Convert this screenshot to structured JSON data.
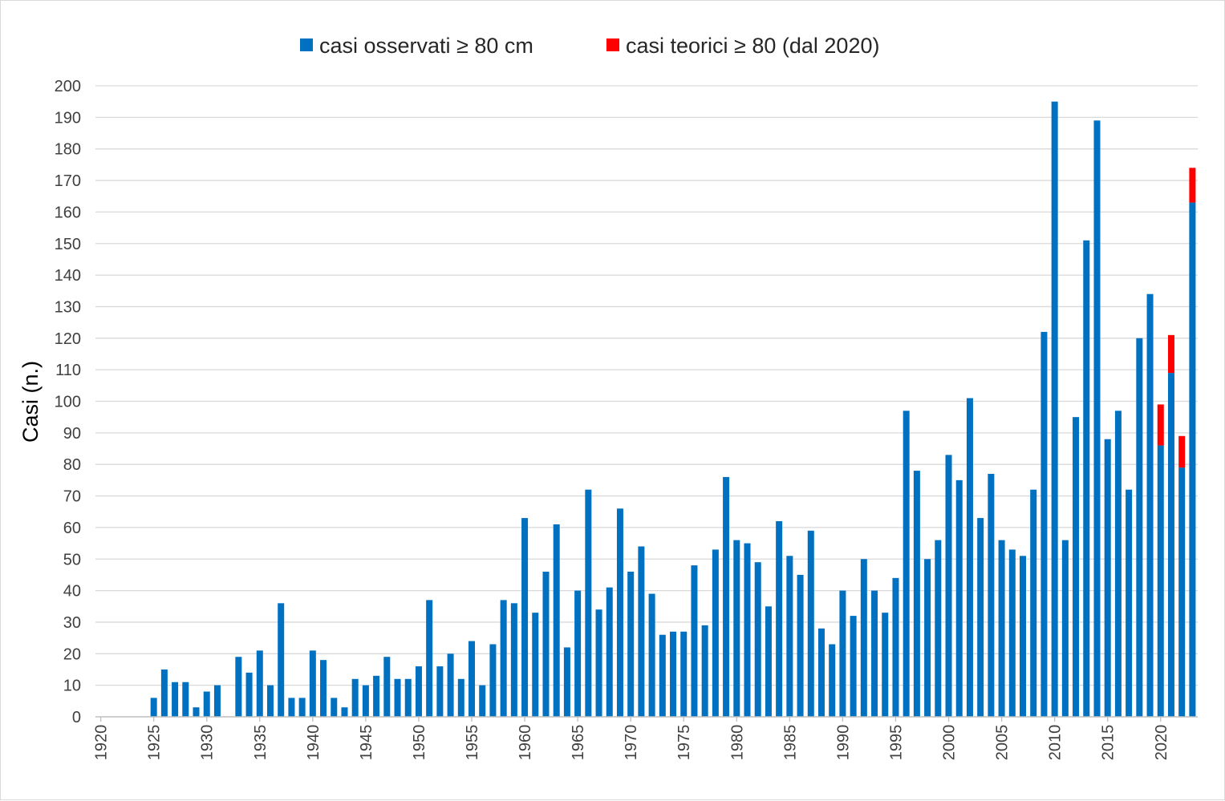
{
  "chart_data": {
    "type": "bar",
    "stacked": true,
    "xlabel": "",
    "ylabel": "Casi (n.)",
    "ylim": [
      0,
      200
    ],
    "yticks": [
      0,
      10,
      20,
      30,
      40,
      50,
      60,
      70,
      80,
      90,
      100,
      110,
      120,
      130,
      140,
      150,
      160,
      170,
      180,
      190,
      200
    ],
    "x_tick_labels": [
      "1920",
      "1925",
      "1930",
      "1935",
      "1940",
      "1945",
      "1950",
      "1955",
      "1960",
      "1965",
      "1970",
      "1975",
      "1980",
      "1985",
      "1990",
      "1995",
      "2000",
      "2005",
      "2010",
      "2015",
      "2020"
    ],
    "grid": true,
    "legend_position": "top",
    "categories": [
      1920,
      1921,
      1922,
      1923,
      1924,
      1925,
      1926,
      1927,
      1928,
      1929,
      1930,
      1931,
      1932,
      1933,
      1934,
      1935,
      1936,
      1937,
      1938,
      1939,
      1940,
      1941,
      1942,
      1943,
      1944,
      1945,
      1946,
      1947,
      1948,
      1949,
      1950,
      1951,
      1952,
      1953,
      1954,
      1955,
      1956,
      1957,
      1958,
      1959,
      1960,
      1961,
      1962,
      1963,
      1964,
      1965,
      1966,
      1967,
      1968,
      1969,
      1970,
      1971,
      1972,
      1973,
      1974,
      1975,
      1976,
      1977,
      1978,
      1979,
      1980,
      1981,
      1982,
      1983,
      1984,
      1985,
      1986,
      1987,
      1988,
      1989,
      1990,
      1991,
      1992,
      1993,
      1994,
      1995,
      1996,
      1997,
      1998,
      1999,
      2000,
      2001,
      2002,
      2003,
      2004,
      2005,
      2006,
      2007,
      2008,
      2009,
      2010,
      2011,
      2012,
      2013,
      2014,
      2015,
      2016,
      2017,
      2018,
      2019,
      2020,
      2021,
      2022,
      2023
    ],
    "series": [
      {
        "name": "casi osservati ≥ 80 cm",
        "color": "#0070C0",
        "values": [
          0,
          0,
          0,
          0,
          0,
          6,
          15,
          11,
          11,
          3,
          8,
          10,
          0,
          19,
          14,
          21,
          10,
          36,
          6,
          6,
          21,
          18,
          6,
          3,
          12,
          10,
          13,
          19,
          12,
          12,
          16,
          37,
          16,
          20,
          12,
          24,
          10,
          23,
          37,
          36,
          63,
          33,
          46,
          61,
          22,
          40,
          72,
          34,
          41,
          66,
          46,
          54,
          39,
          26,
          27,
          27,
          48,
          29,
          53,
          76,
          56,
          55,
          49,
          35,
          62,
          51,
          45,
          59,
          28,
          23,
          40,
          32,
          50,
          40,
          33,
          44,
          97,
          78,
          50,
          56,
          83,
          75,
          101,
          63,
          77,
          56,
          53,
          51,
          72,
          122,
          195,
          56,
          95,
          151,
          189,
          88,
          97,
          72,
          120,
          134,
          86,
          109,
          79,
          163
        ]
      },
      {
        "name": "casi teorici ≥ 80 (dal 2020)",
        "color": "#FF0000",
        "values": [
          0,
          0,
          0,
          0,
          0,
          0,
          0,
          0,
          0,
          0,
          0,
          0,
          0,
          0,
          0,
          0,
          0,
          0,
          0,
          0,
          0,
          0,
          0,
          0,
          0,
          0,
          0,
          0,
          0,
          0,
          0,
          0,
          0,
          0,
          0,
          0,
          0,
          0,
          0,
          0,
          0,
          0,
          0,
          0,
          0,
          0,
          0,
          0,
          0,
          0,
          0,
          0,
          0,
          0,
          0,
          0,
          0,
          0,
          0,
          0,
          0,
          0,
          0,
          0,
          0,
          0,
          0,
          0,
          0,
          0,
          0,
          0,
          0,
          0,
          0,
          0,
          0,
          0,
          0,
          0,
          0,
          0,
          0,
          0,
          0,
          0,
          0,
          0,
          0,
          0,
          0,
          0,
          0,
          0,
          0,
          0,
          0,
          0,
          0,
          0,
          13,
          12,
          10,
          11
        ]
      }
    ]
  }
}
